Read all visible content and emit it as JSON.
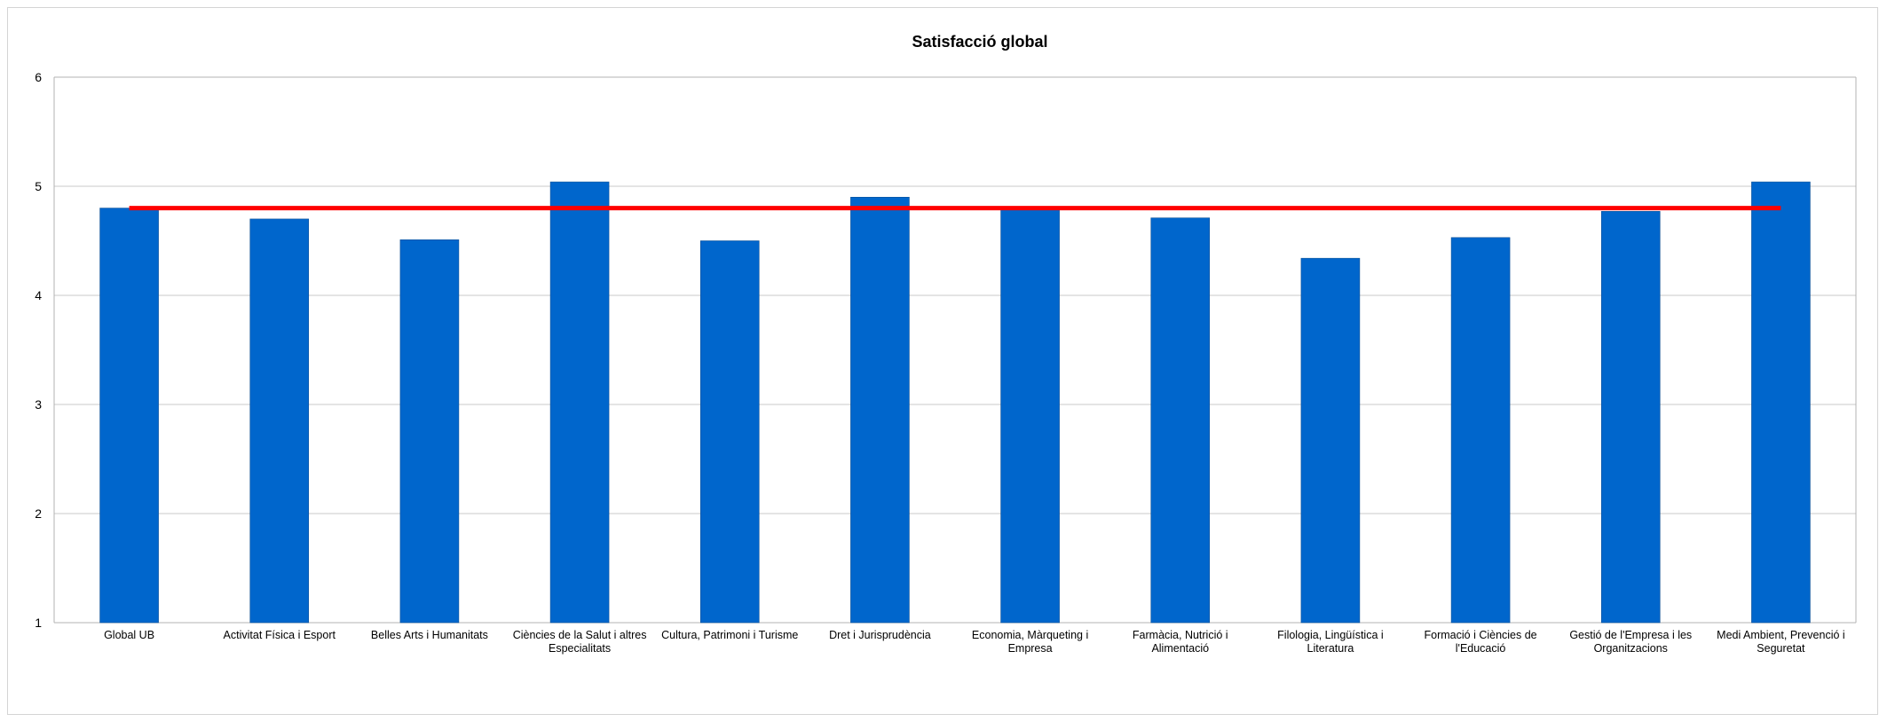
{
  "chart_data": {
    "type": "bar",
    "title": "Satisfacció global",
    "xlabel": "",
    "ylabel": "",
    "ylim": [
      1,
      6
    ],
    "yticks": [
      1,
      2,
      3,
      4,
      5,
      6
    ],
    "grid": true,
    "legend": "none",
    "categories": [
      "Global UB",
      "Activitat Física i Esport",
      "Belles Arts i Humanitats",
      "Ciències de la Salut i altres Especialitats",
      "Cultura, Patrimoni i Turisme",
      "Dret i Jurisprudència",
      "Economia, Màrqueting i Empresa",
      "Farmàcia, Nutrició i Alimentació",
      "Filologia, Lingüística i Literatura",
      "Formació i Ciències de l'Educació",
      "Gestió de l'Empresa i les Organitzacions",
      "Medi Ambient, Prevenció i Seguretat"
    ],
    "category_label_lines": [
      [
        "Global UB"
      ],
      [
        "Activitat Física i Esport"
      ],
      [
        "Belles Arts i Humanitats"
      ],
      [
        "Ciències de la Salut i altres",
        "Especialitats"
      ],
      [
        "Cultura, Patrimoni i Turisme"
      ],
      [
        "Dret i Jurisprudència"
      ],
      [
        "Economia, Màrqueting i",
        "Empresa"
      ],
      [
        "Farmàcia, Nutrició i",
        "Alimentació"
      ],
      [
        "Filologia, Lingüística i",
        "Literatura"
      ],
      [
        "Formació i Ciències de",
        "l'Educació"
      ],
      [
        "Gestió de l'Empresa i les",
        "Organitzacions"
      ],
      [
        "Medi Ambient, Prevenció i",
        "Seguretat"
      ]
    ],
    "series": [
      {
        "type": "bar",
        "color": "#0066cc",
        "values": [
          4.8,
          4.7,
          4.51,
          5.04,
          4.5,
          4.9,
          4.81,
          4.71,
          4.34,
          4.53,
          4.77,
          5.04
        ]
      },
      {
        "type": "line",
        "color": "#ff0000",
        "values": [
          4.8,
          4.8,
          4.8,
          4.8,
          4.8,
          4.8,
          4.8,
          4.8,
          4.8,
          4.8,
          4.8,
          4.8
        ]
      }
    ]
  }
}
